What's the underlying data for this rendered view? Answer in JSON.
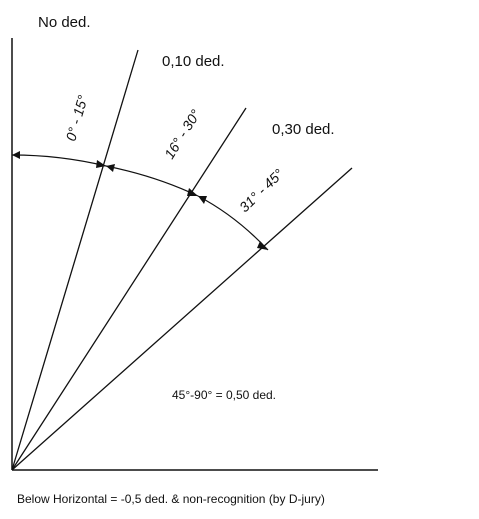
{
  "diagram": {
    "top_label": "No ded.",
    "zone_labels": {
      "ded_010": "0,10 ded.",
      "ded_030": "0,30 ded.",
      "ded_050": "45°-90° = 0,50 ded."
    },
    "angle_ranges": {
      "range_0_15": "0° - 15°",
      "range_16_30": "16° - 30°",
      "range_31_45": "31° - 45°"
    },
    "footer": "Below Horizontal = -0,5 ded. & non-recognition (by D-jury)",
    "colors": {
      "line": "#111111",
      "background": "#ffffff"
    }
  }
}
